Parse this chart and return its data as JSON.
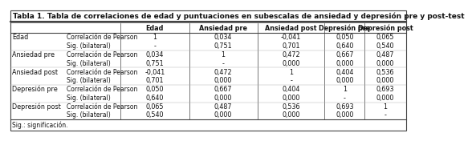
{
  "title": "Tabla 1. Tabla de correlaciones de edad y puntuaciones en subescalas de ansiedad y depresión pre y post-test",
  "col_headers": [
    "Edad",
    "Ansiedad pre",
    "Ansiedad post",
    "Depresión pre",
    "Depresión post"
  ],
  "row_groups": [
    {
      "label": "Edad",
      "rows": [
        [
          "Correlación de Pearson",
          "1",
          "0,034",
          "-0,041",
          "0,050",
          "0,065"
        ],
        [
          "Sig. (bilateral)",
          "-",
          "0,751",
          "0,701",
          "0,640",
          "0,540"
        ]
      ]
    },
    {
      "label": ".",
      "rows": [
        [
          "Correlación de Pearson",
          "0,034",
          "1",
          "0,472",
          "0,667",
          "0,487"
        ],
        [
          "Sig. (bilateral)",
          "0,751",
          "-",
          "0,000",
          "0,000",
          "0,000"
        ]
      ]
    },
    {
      "label": "Ansiedad post",
      "rows": [
        [
          "Correlación de Pearson",
          "-0,041",
          "0,472",
          "1",
          "0,404",
          "0,536"
        ],
        [
          "Sig. (bilateral)",
          "0,701",
          "0,000",
          "-",
          "0,000",
          "0,000"
        ]
      ]
    },
    {
      "label": "Depresión pre",
      "rows": [
        [
          "Correlación de Pearson",
          "0,050",
          "0,667",
          "0,404",
          "1",
          "0,693"
        ],
        [
          "Sig. (bilateral)",
          "0,640",
          "0,000",
          "0,000",
          "-",
          "0,000"
        ]
      ]
    },
    {
      "label": "Depresión post",
      "rows": [
        [
          "Correlación de Pearson",
          "0,065",
          "0,487",
          "0,536",
          "0,693",
          "1"
        ],
        [
          "Sig. (bilateral)",
          "0,540",
          "0,000",
          "0,000",
          "0,000",
          "-"
        ]
      ]
    }
  ],
  "group_labels": [
    "Edad",
    "Ansiedad pre",
    "Ansiedad post",
    "Depresión pre",
    "Depresión post"
  ],
  "footnote": "Sig.: significación.",
  "border_color": "#444444",
  "text_color": "#111111",
  "font_size": 5.8,
  "title_font_size": 6.5,
  "footnote_font_size": 5.5
}
